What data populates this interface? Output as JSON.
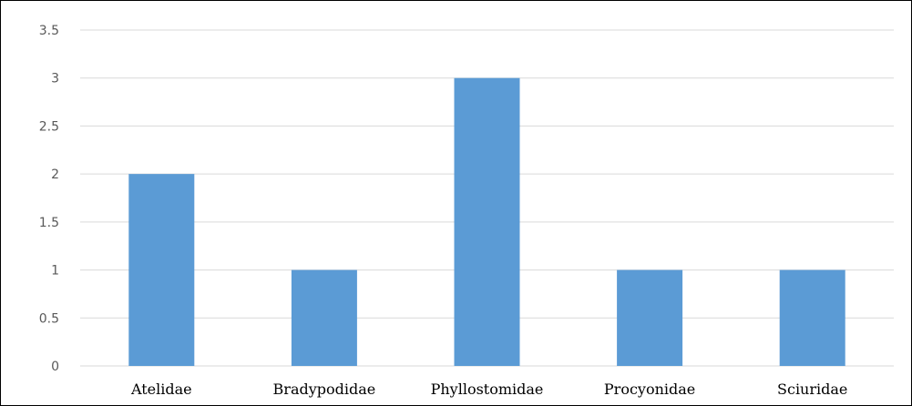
{
  "chart_data": {
    "type": "bar",
    "categories": [
      "Atelidae",
      "Bradypodidae",
      "Phyllostomidae",
      "Procyonidae",
      "Sciuridae"
    ],
    "values": [
      2,
      1,
      3,
      1,
      1
    ],
    "ylim": [
      0,
      3.5
    ],
    "yticks": [
      "0",
      "0.5",
      "1",
      "1.5",
      "2",
      "2.5",
      "3",
      "3.5"
    ],
    "grid": true,
    "legend": "none",
    "bar_color": "#5b9bd5",
    "title": "",
    "xlabel": "",
    "ylabel": ""
  }
}
